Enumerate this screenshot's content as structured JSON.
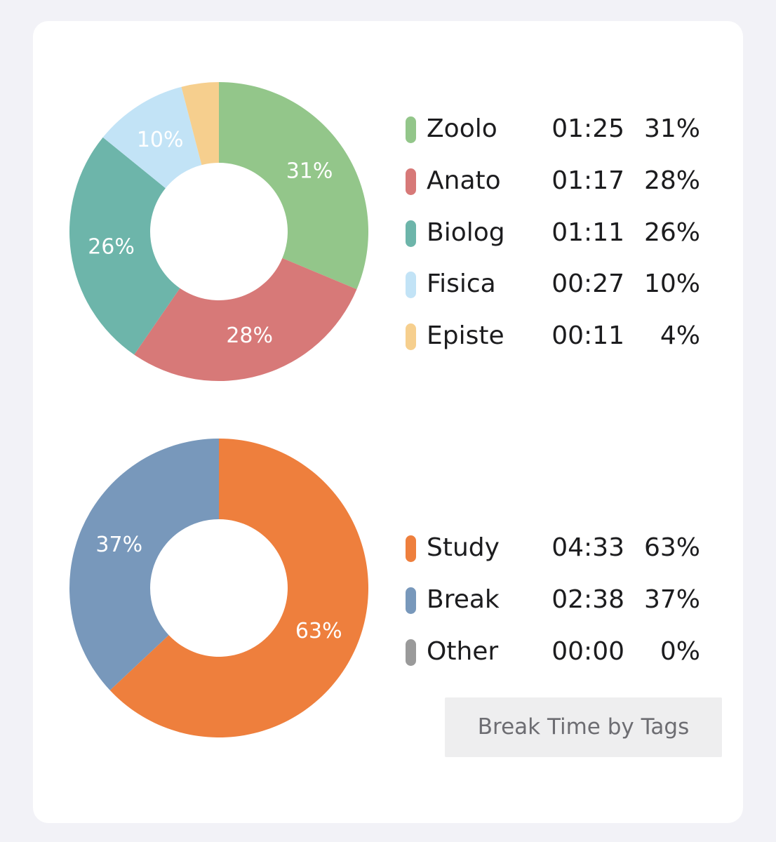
{
  "chart_data": [
    {
      "type": "pie",
      "donut": true,
      "categories": [
        "Zoolo",
        "Anato",
        "Biolog",
        "Fisica",
        "Episte"
      ],
      "times": [
        "01:25",
        "01:17",
        "01:11",
        "00:27",
        "00:11"
      ],
      "values": [
        31,
        28,
        26,
        10,
        4
      ],
      "percent_labels": [
        "31%",
        "28%",
        "26%",
        "10%",
        "4%"
      ],
      "slice_labels": [
        "31%",
        "28%",
        "26%",
        "10%",
        ""
      ],
      "colors": [
        "#93c68a",
        "#d77978",
        "#6db5aa",
        "#c2e3f6",
        "#f6cf8e"
      ],
      "legend_placement": "right"
    },
    {
      "type": "pie",
      "donut": true,
      "categories": [
        "Study",
        "Break",
        "Other"
      ],
      "times": [
        "04:33",
        "02:38",
        "00:00"
      ],
      "values": [
        63,
        37,
        0
      ],
      "percent_labels": [
        "63%",
        "37%",
        "0%"
      ],
      "slice_labels": [
        "63%",
        "37%",
        ""
      ],
      "colors": [
        "#ee7f3d",
        "#7898bb",
        "#9a9a9a"
      ],
      "legend_placement": "right"
    }
  ],
  "buttons": {
    "tags_label": "Break Time by Tags"
  }
}
